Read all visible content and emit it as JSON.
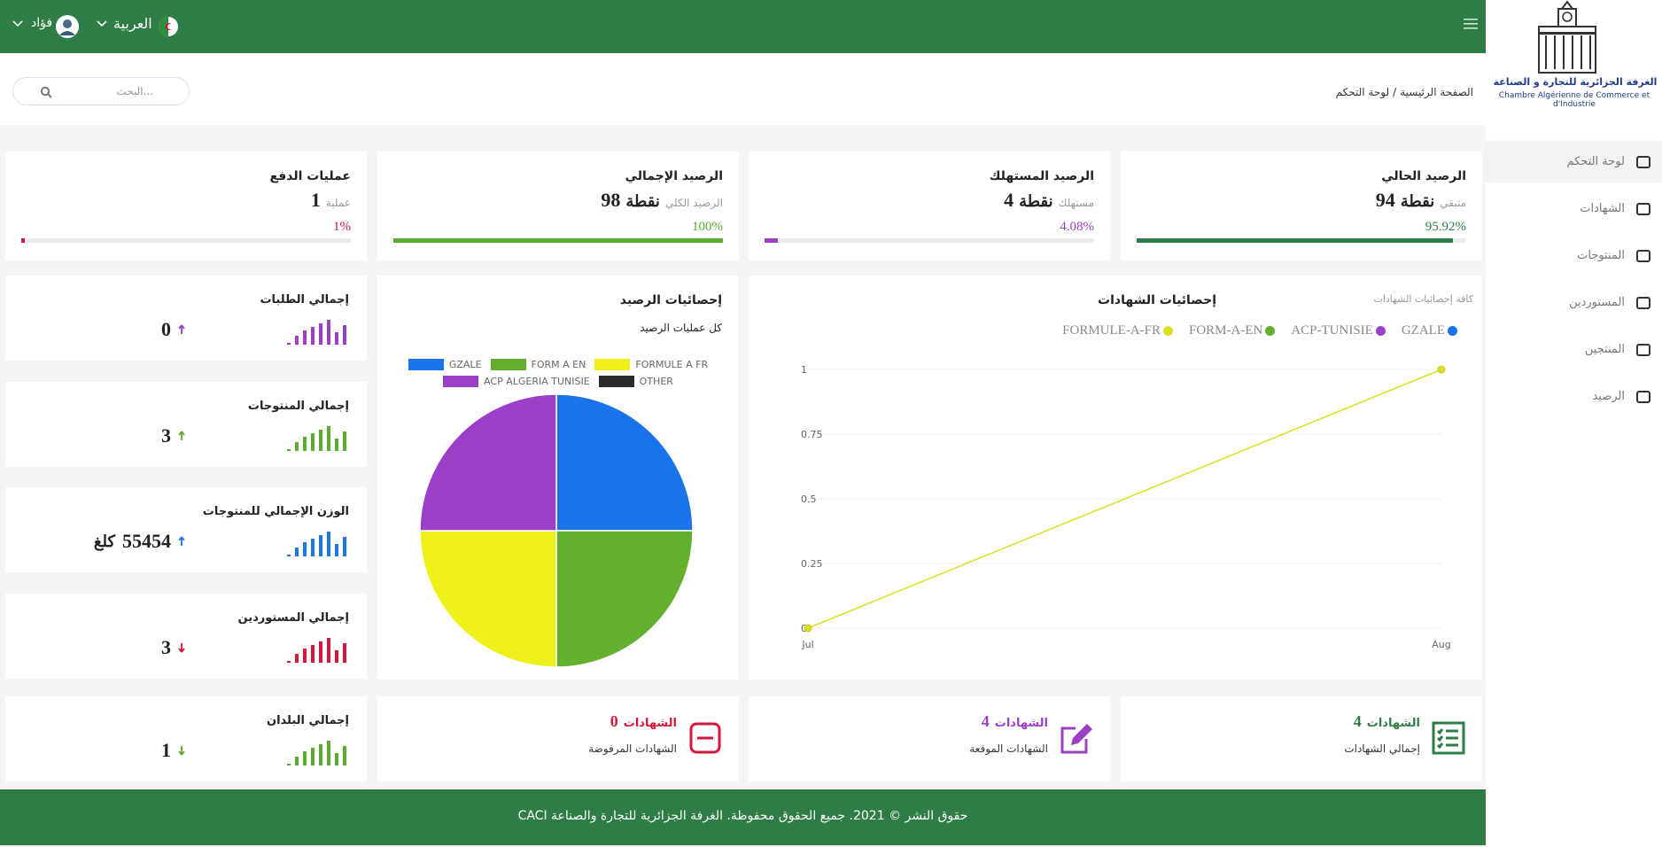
{
  "topbar": {
    "user": "فؤاد",
    "language": "العربية"
  },
  "logo": {
    "arabic": "الغرفة الجزائرية للتجارة و الصناعة",
    "french": "Chambre Algérienne de Commerce et d'Industrie"
  },
  "sidebar": {
    "items": [
      "لوحة التحكم",
      "الشهادات",
      "المنتوجات",
      "المستوردين",
      "المنتجين",
      "الرصيد"
    ]
  },
  "search": {
    "placeholder": "البحث..."
  },
  "breadcrumb": {
    "home": "الصفحة الرئيسية",
    "separator": "/",
    "current": "لوحة التحكم"
  },
  "stat_cards": [
    {
      "title": "الرصيد الحالي",
      "caption": "متبقي",
      "value": 94,
      "unit": "نقطة",
      "progress": {
        "value": 95.92,
        "label": "95.92%"
      },
      "color": "#2e7d46"
    },
    {
      "title": "الرصيد المستهلك",
      "caption": "مستهلك",
      "value": 4,
      "unit": "نقطة",
      "progress": {
        "value": 4.08,
        "label": "4.08%"
      },
      "color": "#9c3fc6"
    },
    {
      "title": "الرصيد الإجمالي",
      "caption": "الرصيد الكلي",
      "value": 98,
      "unit": "نقطة",
      "progress": {
        "value": 100,
        "label": "100%"
      },
      "color": "#5aab2e"
    },
    {
      "title": "عمليات الدفع",
      "caption": "عملية",
      "value": 1,
      "progress": {
        "value": 1,
        "label": "1%"
      },
      "color": "#d6173a"
    }
  ],
  "summary_cards": [
    {
      "title": "إجمالي الطلبات",
      "value": 0,
      "trend": "up",
      "color": "#9c3fc6"
    },
    {
      "title": "إجمالي المنتوجات",
      "value": 3,
      "trend": "up",
      "color": "#5aab2e"
    },
    {
      "title": "الوزن الإجمالي للمنتوجات",
      "value": 55454,
      "unit": "كلغ",
      "trend": "up",
      "color": "#1f77e0"
    },
    {
      "title": "إجمالي المستوردين",
      "value": 3,
      "trend": "down",
      "color": "#d6173a"
    },
    {
      "title": "إجمالي البلدان",
      "value": 1,
      "trend": "down",
      "color": "#5aab2e"
    }
  ],
  "balance_chart": {
    "type": "pie",
    "title": "إحصائيات الرصيد",
    "subtitle": "كل عمليات الرصيد",
    "categories": [
      "GZALE",
      "FORM A EN",
      "FORMULE A FR",
      "ACP ALGERIA TUNISIE",
      "OTHER"
    ],
    "values": [
      1,
      1,
      1,
      1,
      0
    ],
    "colors": [
      "#1a73e8",
      "#63b02e",
      "#eef01a",
      "#9b3fc9",
      "#2b2b2b"
    ]
  },
  "certificates_chart": {
    "type": "line",
    "title": "إحصائيات الشهادات",
    "subtitle": "كافة إحصائيات الشهادات",
    "categories": [
      "Jul",
      "Aug"
    ],
    "series": [
      {
        "name": "GZALE",
        "color": "#1a73e8",
        "values": [
          null,
          null
        ]
      },
      {
        "name": "ACP-TUNISIE",
        "color": "#9b3fc9",
        "values": [
          null,
          null
        ]
      },
      {
        "name": "FORM-A-EN",
        "color": "#63b02e",
        "values": [
          null,
          null
        ]
      },
      {
        "name": "FORMULE-A-FR",
        "color": "#d9e021",
        "values": [
          0,
          1
        ]
      }
    ],
    "ylim": [
      0,
      1
    ],
    "yticks": [
      0,
      0.25,
      0.5,
      0.75,
      1
    ],
    "grid": true
  },
  "certificate_cards": [
    {
      "count": 4,
      "label": "الشهادات",
      "caption": "إجمالي الشهادات",
      "color": "#2e7d46",
      "icon": "list"
    },
    {
      "count": 4,
      "label": "الشهادات",
      "caption": "الشهادات الموقعة",
      "color": "#9c3fc6",
      "icon": "edit"
    },
    {
      "count": 0,
      "label": "الشهادات",
      "caption": "الشهادات المرفوضة",
      "color": "#d6173a",
      "icon": "minus"
    }
  ],
  "footer": {
    "text": "حقوق النشر © 2021. جميع الحقوق محفوظة. الغرفة الجزائرية للتجارة والصناعة CACI"
  }
}
